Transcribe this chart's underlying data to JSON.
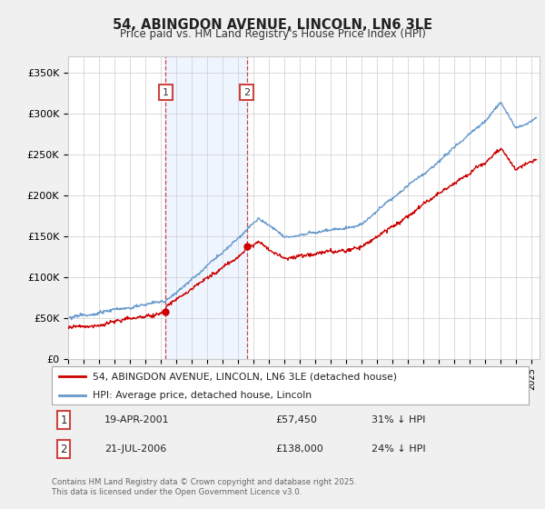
{
  "title": "54, ABINGDON AVENUE, LINCOLN, LN6 3LE",
  "subtitle": "Price paid vs. HM Land Registry's House Price Index (HPI)",
  "ylabel_ticks": [
    "£0",
    "£50K",
    "£100K",
    "£150K",
    "£200K",
    "£250K",
    "£300K",
    "£350K"
  ],
  "ytick_values": [
    0,
    50000,
    100000,
    150000,
    200000,
    250000,
    300000,
    350000
  ],
  "ylim": [
    0,
    370000
  ],
  "xlim_start": 1995.0,
  "xlim_end": 2025.5,
  "sale1_year": 2001.3,
  "sale1_price": 57450,
  "sale2_year": 2006.55,
  "sale2_price": 138000,
  "sale1_label": "1",
  "sale2_label": "2",
  "legend_red": "54, ABINGDON AVENUE, LINCOLN, LN6 3LE (detached house)",
  "legend_blue": "HPI: Average price, detached house, Lincoln",
  "table_row1": [
    "1",
    "19-APR-2001",
    "£57,450",
    "31% ↓ HPI"
  ],
  "table_row2": [
    "2",
    "21-JUL-2006",
    "£138,000",
    "24% ↓ HPI"
  ],
  "footer": "Contains HM Land Registry data © Crown copyright and database right 2025.\nThis data is licensed under the Open Government Licence v3.0.",
  "bg_color": "#f0f0f0",
  "plot_bg": "#ffffff",
  "red_color": "#cc0000",
  "blue_color": "#6699cc",
  "dashed_color": "#cc4444",
  "shade_color": "#cce0ff",
  "grid_color": "#cccccc",
  "hpi_seed": 12,
  "red_seed": 77
}
